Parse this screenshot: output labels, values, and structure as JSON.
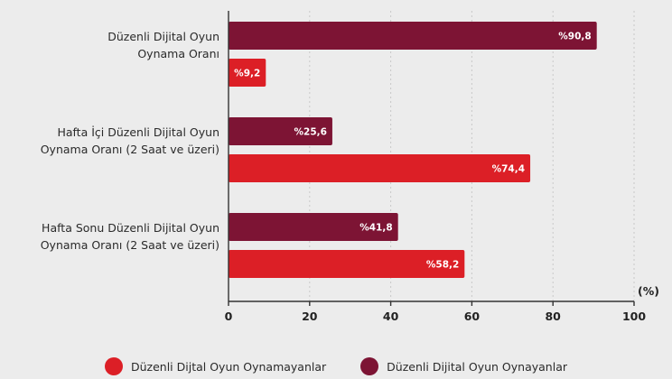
{
  "chart_data": {
    "type": "bar",
    "orientation": "horizontal",
    "categories": [
      [
        "Düzenli Dijital Oyun",
        "Oynama Oranı"
      ],
      [
        "Hafta İçi Düzenli Dijital Oyun",
        "Oynama Oranı (2 Saat ve üzeri)"
      ],
      [
        "Hafta Sonu Düzenli Dijital Oyun",
        "Oynama Oranı (2 Saat ve üzeri)"
      ]
    ],
    "series": [
      {
        "name": "Düzenli Dijital Oyun Oynayanlar",
        "color": "#7d1434",
        "values": [
          90.8,
          25.6,
          41.8
        ],
        "labels": [
          "%90,8",
          "%25,6",
          "%41,8"
        ]
      },
      {
        "name": "Düzenli Dijtal Oyun Oynamayanlar",
        "color": "#dc1f26",
        "values": [
          9.2,
          74.4,
          58.2
        ],
        "labels": [
          "%9,2",
          "%74,4",
          "%58,2"
        ]
      }
    ],
    "xlim": [
      0,
      100
    ],
    "xticks": [
      0,
      20,
      40,
      60,
      80,
      100
    ],
    "xlabel": "(%)",
    "legend_position": "bottom",
    "legend_order": [
      1,
      0
    ],
    "grid": "vertical-dashed"
  }
}
